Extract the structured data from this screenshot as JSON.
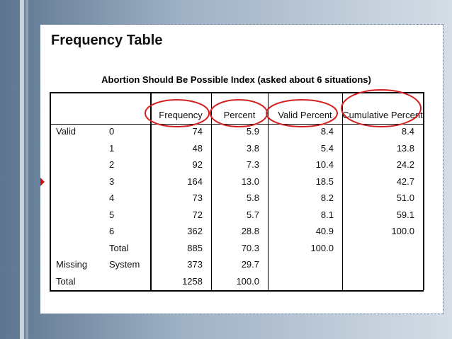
{
  "heading": "Frequency Table",
  "table": {
    "title": "Abortion Should Be Possible Index (asked about 6 situations)",
    "columns": [
      "Frequency",
      "Percent",
      "Valid Percent",
      "Cumulative Percent"
    ],
    "rows": [
      [
        "Valid",
        "0",
        "74",
        "5.9",
        "8.4",
        "8.4"
      ],
      [
        null,
        "1",
        "48",
        "3.8",
        "5.4",
        "13.8"
      ],
      [
        null,
        "2",
        "92",
        "7.3",
        "10.4",
        "24.2"
      ],
      [
        null,
        "3",
        "164",
        "13.0",
        "18.5",
        "42.7"
      ],
      [
        null,
        "4",
        "73",
        "5.8",
        "8.2",
        "51.0"
      ],
      [
        null,
        "5",
        "72",
        "5.7",
        "8.1",
        "59.1"
      ],
      [
        null,
        "6",
        "362",
        "28.8",
        "40.9",
        "100.0"
      ],
      [
        null,
        "Total",
        "885",
        "70.3",
        "100.0",
        null
      ],
      [
        "Missing",
        "System",
        "373",
        "29.7",
        null,
        null
      ],
      [
        "Total",
        null,
        "1258",
        "100.0",
        null,
        null
      ]
    ]
  }
}
